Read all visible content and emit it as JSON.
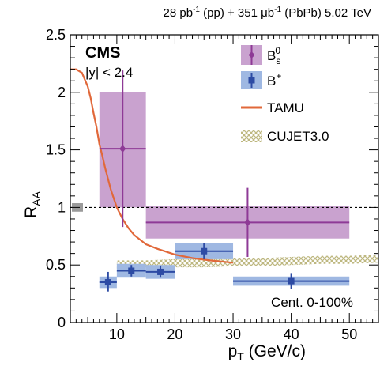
{
  "header": {
    "part1": "28 pb",
    "part1_sup": "-1",
    "part2": " (pp) + 351 ",
    "part2_unit": "μb",
    "part2_sup": "-1",
    "part3": " (PbPb) 5.02 TeV"
  },
  "annotations": {
    "cms": "CMS",
    "rapidity": "|y| < 2.4",
    "centrality": "Cent. 0-100%"
  },
  "chart_data": {
    "type": "scatter",
    "xlabel": {
      "main": "p",
      "sub": "T",
      "rest": " (GeV/c)"
    },
    "ylabel": {
      "main": "R",
      "sub": "AA"
    },
    "xlim": [
      2,
      55
    ],
    "ylim": [
      0,
      2.5
    ],
    "x_ticks": [
      10,
      20,
      30,
      40,
      50
    ],
    "y_ticks": [
      0,
      0.5,
      1,
      1.5,
      2,
      2.5
    ],
    "x_tick_labels": [
      "10",
      "20",
      "30",
      "40",
      "50"
    ],
    "y_tick_labels": [
      "0",
      "0.5",
      "1",
      "1.5",
      "2",
      "2.5"
    ],
    "reference_line": 1,
    "global_unc_box": {
      "y_low": 0.97,
      "y_high": 1.03
    },
    "legend": [
      {
        "key": "bs",
        "label": "B",
        "sup": "0",
        "sub": "s"
      },
      {
        "key": "bplus",
        "label": "B",
        "sup": "+"
      },
      {
        "key": "tamu",
        "label": "TAMU"
      },
      {
        "key": "cujet",
        "label": "CUJET3.0"
      }
    ],
    "series": [
      {
        "name": "Bs0",
        "color": "#8e3a96",
        "box_color": "#c9a2cf",
        "points": [
          {
            "x": 11,
            "x_low": 7,
            "x_high": 15,
            "y": 1.51,
            "stat_low": 0.68,
            "stat_high": 0.68,
            "syst_low": 0.51,
            "syst_high": 0.49
          },
          {
            "x": 32.5,
            "x_low": 15,
            "x_high": 50,
            "y": 0.87,
            "stat_low": 0.3,
            "stat_high": 0.3,
            "syst_low": 0.14,
            "syst_high": 0.14
          }
        ]
      },
      {
        "name": "B+",
        "color": "#2d4ba4",
        "box_color": "#9fb8e2",
        "points": [
          {
            "x": 8.5,
            "x_low": 7,
            "x_high": 10,
            "y": 0.35,
            "stat_low": 0.08,
            "stat_high": 0.09,
            "syst_low": 0.05,
            "syst_high": 0.05
          },
          {
            "x": 12.5,
            "x_low": 10,
            "x_high": 15,
            "y": 0.45,
            "stat_low": 0.05,
            "stat_high": 0.05,
            "syst_low": 0.06,
            "syst_high": 0.06
          },
          {
            "x": 17.5,
            "x_low": 15,
            "x_high": 20,
            "y": 0.44,
            "stat_low": 0.05,
            "stat_high": 0.05,
            "syst_low": 0.06,
            "syst_high": 0.06
          },
          {
            "x": 25,
            "x_low": 20,
            "x_high": 30,
            "y": 0.62,
            "stat_low": 0.07,
            "stat_high": 0.07,
            "syst_low": 0.07,
            "syst_high": 0.07
          },
          {
            "x": 40,
            "x_low": 30,
            "x_high": 50,
            "y": 0.36,
            "stat_low": 0.07,
            "stat_high": 0.07,
            "syst_low": 0.04,
            "syst_high": 0.04
          }
        ]
      },
      {
        "name": "TAMU",
        "color": "#e1683a",
        "x": [
          2,
          3,
          4,
          5,
          5.5,
          6,
          6.5,
          7,
          7.5,
          8,
          9,
          10,
          11,
          12,
          13,
          14,
          15,
          17,
          20,
          23,
          26,
          30
        ],
        "y": [
          2.2,
          2.2,
          2.17,
          2.05,
          1.95,
          1.82,
          1.7,
          1.55,
          1.45,
          1.34,
          1.15,
          1.0,
          0.9,
          0.82,
          0.76,
          0.72,
          0.68,
          0.64,
          0.59,
          0.56,
          0.54,
          0.52
        ]
      },
      {
        "name": "CUJET3.0",
        "color": "#c8c290",
        "x": [
          10,
          15,
          20,
          25,
          30,
          35,
          40,
          45,
          50,
          55
        ],
        "y_low": [
          0.47,
          0.47,
          0.48,
          0.48,
          0.49,
          0.49,
          0.5,
          0.51,
          0.51,
          0.52
        ],
        "y_high": [
          0.54,
          0.54,
          0.55,
          0.55,
          0.56,
          0.56,
          0.57,
          0.58,
          0.58,
          0.59
        ]
      }
    ]
  }
}
